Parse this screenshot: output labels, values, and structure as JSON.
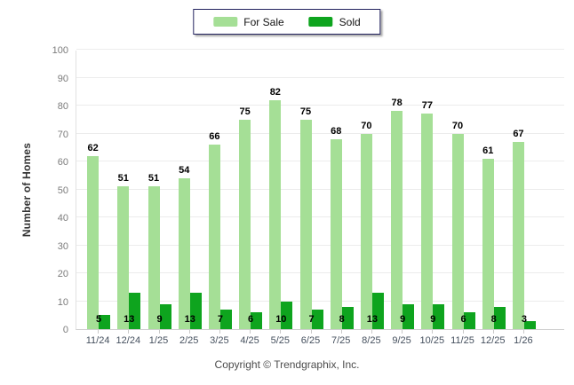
{
  "chart_data": {
    "type": "bar",
    "categories": [
      "11/24",
      "12/24",
      "1/25",
      "2/25",
      "3/25",
      "4/25",
      "5/25",
      "6/25",
      "7/25",
      "8/25",
      "9/25",
      "10/25",
      "11/25",
      "12/25",
      "1/26"
    ],
    "series": [
      {
        "name": "For Sale",
        "color": "#A5DF96",
        "values": [
          62,
          51,
          51,
          54,
          66,
          75,
          82,
          75,
          68,
          70,
          78,
          77,
          70,
          61,
          67
        ]
      },
      {
        "name": "Sold",
        "color": "#0EA41E",
        "values": [
          5,
          13,
          9,
          13,
          7,
          6,
          10,
          7,
          8,
          13,
          9,
          9,
          6,
          8,
          3
        ]
      }
    ],
    "title": "",
    "xlabel": "",
    "ylabel": "Number of Homes",
    "ylim": [
      0,
      100
    ],
    "ytick_step": 10,
    "grid": true,
    "legend_position": "top-center",
    "value_labels": "above-for-sale, bottom-sold"
  },
  "footer": {
    "copyright": "Copyright © Trendgraphix, Inc."
  }
}
